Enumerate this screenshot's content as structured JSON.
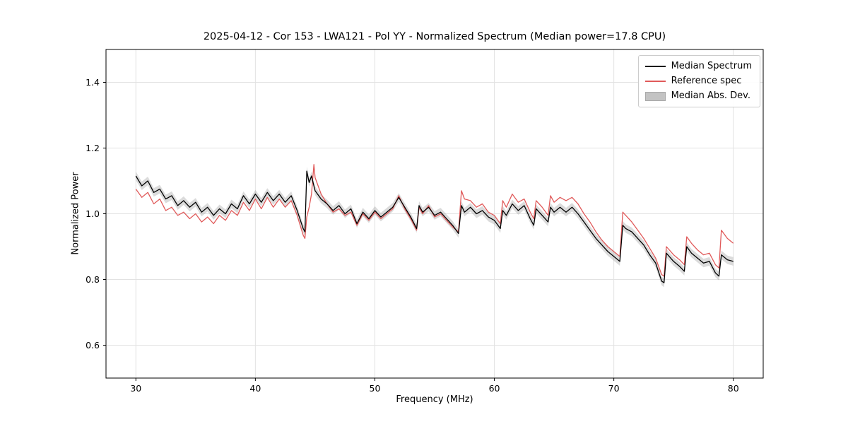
{
  "figure": {
    "background": "#ffffff"
  },
  "legend": {
    "position": "upper right",
    "items": [
      {
        "label": "Median Spectrum",
        "type": "line"
      },
      {
        "label": "Reference spec",
        "type": "line"
      },
      {
        "label": "Median Abs. Dev.",
        "type": "patch"
      }
    ]
  },
  "chart_data": {
    "type": "line",
    "title": "2025-04-12 - Cor 153 - LWA121 - Pol YY - Normalized Spectrum (Median power=17.8 CPU)",
    "xlabel": "Frequency (MHz)",
    "ylabel": "Normalized Power",
    "xlim": [
      27.5,
      82.5
    ],
    "ylim": [
      0.5,
      1.5
    ],
    "x_ticks": [
      30,
      40,
      50,
      60,
      70,
      80
    ],
    "x_tick_labels": [
      "30",
      "40",
      "50",
      "60",
      "70",
      "80"
    ],
    "y_ticks": [
      0.6,
      0.8,
      1.0,
      1.2,
      1.4
    ],
    "y_tick_labels": [
      "0.6",
      "0.8",
      "1.0",
      "1.2",
      "1.4"
    ],
    "grid": true,
    "grid_color": "#e2e2e2",
    "frame_color": "#000000",
    "legend_position": "upper right",
    "x": [
      30,
      30.5,
      31,
      31.5,
      32,
      32.5,
      33,
      33.5,
      34,
      34.5,
      35,
      35.5,
      36,
      36.5,
      37,
      37.5,
      38,
      38.5,
      39,
      39.5,
      40,
      40.5,
      41,
      41.5,
      42,
      42.5,
      43,
      43.5,
      44,
      44.15,
      44.3,
      44.5,
      44.7,
      44.9,
      45,
      45.5,
      46,
      46.5,
      47,
      47.5,
      48,
      48.5,
      49,
      49.5,
      50,
      50.5,
      51,
      51.5,
      52,
      52.5,
      53,
      53.5,
      53.7,
      54,
      54.5,
      55,
      55.5,
      56,
      56.5,
      57,
      57.25,
      57.5,
      58,
      58.5,
      59,
      59.5,
      60,
      60.5,
      60.7,
      61,
      61.5,
      62,
      62.5,
      63,
      63.3,
      63.5,
      64,
      64.5,
      64.7,
      65,
      65.5,
      66,
      66.5,
      67,
      67.5,
      68,
      68.5,
      69,
      69.5,
      70,
      70.5,
      70.75,
      71,
      71.5,
      72,
      72.5,
      73,
      73.5,
      74,
      74.2,
      74.4,
      75,
      75.5,
      75.9,
      76.1,
      76.5,
      77,
      77.5,
      78,
      78.5,
      78.8,
      79,
      79.5,
      80
    ],
    "series": [
      {
        "name": "Median Spectrum",
        "color": "#000000",
        "values": [
          1.115,
          1.085,
          1.1,
          1.065,
          1.075,
          1.045,
          1.055,
          1.025,
          1.04,
          1.02,
          1.035,
          1.005,
          1.02,
          0.995,
          1.015,
          1,
          1.03,
          1.015,
          1.055,
          1.03,
          1.06,
          1.035,
          1.065,
          1.04,
          1.06,
          1.035,
          1.055,
          1.01,
          0.955,
          0.945,
          1.13,
          1.095,
          1.115,
          1.085,
          1.07,
          1.045,
          1.03,
          1.01,
          1.025,
          1,
          1.015,
          0.97,
          1.005,
          0.985,
          1.01,
          0.99,
          1.005,
          1.02,
          1.05,
          1.02,
          0.99,
          0.955,
          1.025,
          1.005,
          1.02,
          0.995,
          1.005,
          0.985,
          0.965,
          0.94,
          1.025,
          1.005,
          1.02,
          1,
          1.01,
          0.99,
          0.98,
          0.955,
          1.01,
          0.995,
          1.03,
          1.01,
          1.025,
          0.985,
          0.965,
          1.015,
          0.995,
          0.975,
          1.02,
          1.005,
          1.02,
          1.005,
          1.02,
          1,
          0.975,
          0.95,
          0.925,
          0.905,
          0.885,
          0.87,
          0.855,
          0.965,
          0.955,
          0.945,
          0.925,
          0.905,
          0.875,
          0.85,
          0.795,
          0.79,
          0.88,
          0.855,
          0.84,
          0.825,
          0.9,
          0.88,
          0.865,
          0.85,
          0.855,
          0.82,
          0.81,
          0.875,
          0.86,
          0.855
        ]
      },
      {
        "name": "Reference spec",
        "color": "#e05a5a",
        "values": [
          1.075,
          1.05,
          1.065,
          1.03,
          1.045,
          1.01,
          1.02,
          0.995,
          1.005,
          0.985,
          1,
          0.975,
          0.99,
          0.97,
          0.995,
          0.98,
          1.01,
          0.995,
          1.035,
          1.01,
          1.045,
          1.015,
          1.05,
          1.02,
          1.045,
          1.02,
          1.04,
          0.995,
          0.935,
          0.925,
          0.99,
          1.02,
          1.06,
          1.15,
          1.11,
          1.06,
          1.03,
          1.005,
          1.015,
          0.995,
          1.005,
          0.965,
          1,
          0.98,
          1.005,
          0.985,
          1,
          1.015,
          1.055,
          1.015,
          0.985,
          0.95,
          1.02,
          1,
          1.025,
          0.99,
          1,
          0.98,
          0.96,
          0.945,
          1.07,
          1.045,
          1.04,
          1.02,
          1.03,
          1.005,
          0.995,
          0.97,
          1.04,
          1.02,
          1.06,
          1.035,
          1.045,
          1.005,
          0.985,
          1.04,
          1.02,
          0.995,
          1.055,
          1.035,
          1.05,
          1.04,
          1.05,
          1.03,
          1,
          0.975,
          0.945,
          0.92,
          0.9,
          0.885,
          0.87,
          1.005,
          0.995,
          0.975,
          0.95,
          0.925,
          0.895,
          0.865,
          0.815,
          0.81,
          0.9,
          0.875,
          0.86,
          0.845,
          0.93,
          0.91,
          0.89,
          0.875,
          0.88,
          0.845,
          0.835,
          0.95,
          0.925,
          0.91
        ]
      }
    ],
    "band": {
      "name": "Median Abs. Dev.",
      "around_series": "Median Spectrum",
      "half_width": 0.013,
      "color": "#999999",
      "opacity": 0.35,
      "legend_swatch_color": "#c3c3c3"
    }
  }
}
